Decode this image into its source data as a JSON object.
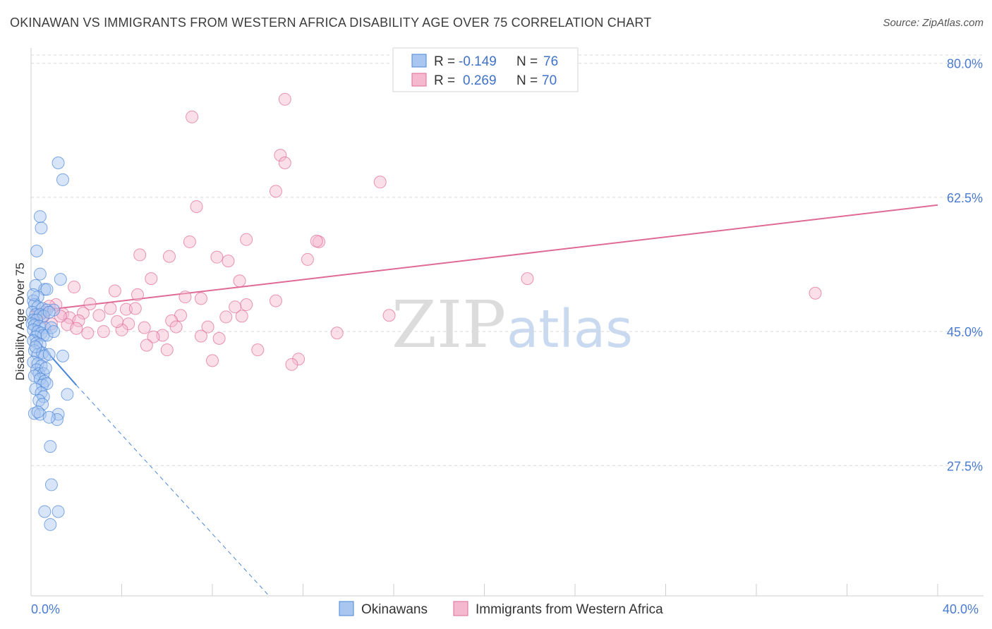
{
  "header": {
    "title": "OKINAWAN VS IMMIGRANTS FROM WESTERN AFRICA DISABILITY AGE OVER 75 CORRELATION CHART",
    "source": "Source: ZipAtlas.com"
  },
  "watermark": {
    "zip": "ZIP",
    "atlas": "atlas"
  },
  "colors": {
    "blue": "#4a86d8",
    "blue_fill": "#a9c6f0",
    "pink": "#e06a96",
    "pink_fill": "#f4b9cf",
    "axis_label": "#4a7bd0"
  },
  "chart_data": {
    "type": "scatter",
    "title": "OKINAWAN VS IMMIGRANTS FROM WESTERN AFRICA DISABILITY AGE OVER 75 CORRELATION CHART",
    "xlabel": "",
    "ylabel": "Disability Age Over 75",
    "xlim": [
      0,
      40
    ],
    "ylim": [
      10.5,
      82
    ],
    "x_tick_labels": {
      "left": "0.0%",
      "right": "40.0%"
    },
    "y_ticks": [
      {
        "value": 80.0,
        "label": "80.0%"
      },
      {
        "value": 62.5,
        "label": "62.5%"
      },
      {
        "value": 45.0,
        "label": "45.0%"
      },
      {
        "value": 27.5,
        "label": "27.5%"
      }
    ],
    "grid": true,
    "legend_position": "top-center",
    "legend": [
      {
        "r_label": "R = ",
        "r_value": "-0.149",
        "n_label": "N = ",
        "n_value": "76"
      },
      {
        "r_label": "R = ",
        "r_value": "0.269",
        "n_label": "N = ",
        "n_value": "70"
      }
    ],
    "series": [
      {
        "name": "Okinawans",
        "color": "#4a86d8",
        "points": [
          [
            1.2,
            67.0
          ],
          [
            1.4,
            64.8
          ],
          [
            0.4,
            60.0
          ],
          [
            0.45,
            58.5
          ],
          [
            0.25,
            55.5
          ],
          [
            0.4,
            52.5
          ],
          [
            1.3,
            51.8
          ],
          [
            0.2,
            51.0
          ],
          [
            0.6,
            50.5
          ],
          [
            0.7,
            50.5
          ],
          [
            0.3,
            49.5
          ],
          [
            0.1,
            49.0
          ],
          [
            0.15,
            48.5
          ],
          [
            0.3,
            48.2
          ],
          [
            0.5,
            48.0
          ],
          [
            0.7,
            47.8
          ],
          [
            1.0,
            47.8
          ],
          [
            0.05,
            47.5
          ],
          [
            0.2,
            47.2
          ],
          [
            0.4,
            47.2
          ],
          [
            0.55,
            47.0
          ],
          [
            0.8,
            47.5
          ],
          [
            0.1,
            46.5
          ],
          [
            0.25,
            46.5
          ],
          [
            0.05,
            46.0
          ],
          [
            0.15,
            45.8
          ],
          [
            0.35,
            45.7
          ],
          [
            0.6,
            45.5
          ],
          [
            0.1,
            45.2
          ],
          [
            0.3,
            45.0
          ],
          [
            0.45,
            44.8
          ],
          [
            0.55,
            44.5
          ],
          [
            0.2,
            44.3
          ],
          [
            0.7,
            44.5
          ],
          [
            0.9,
            45.5
          ],
          [
            1.0,
            45.0
          ],
          [
            0.1,
            43.8
          ],
          [
            0.25,
            43.5
          ],
          [
            0.4,
            43.3
          ],
          [
            0.15,
            42.5
          ],
          [
            0.3,
            42.0
          ],
          [
            0.5,
            42.2
          ],
          [
            0.6,
            41.8
          ],
          [
            0.8,
            42.0
          ],
          [
            1.4,
            41.8
          ],
          [
            0.1,
            41.0
          ],
          [
            0.3,
            40.8
          ],
          [
            0.45,
            40.5
          ],
          [
            0.25,
            40.0
          ],
          [
            0.35,
            39.5
          ],
          [
            0.55,
            39.5
          ],
          [
            0.15,
            39.2
          ],
          [
            0.4,
            38.8
          ],
          [
            0.6,
            38.5
          ],
          [
            0.5,
            38.0
          ],
          [
            0.7,
            38.2
          ],
          [
            0.2,
            37.5
          ],
          [
            0.45,
            37.0
          ],
          [
            0.55,
            36.5
          ],
          [
            1.6,
            36.8
          ],
          [
            0.35,
            36.0
          ],
          [
            0.5,
            35.5
          ],
          [
            0.15,
            34.3
          ],
          [
            0.4,
            34.2
          ],
          [
            1.2,
            34.2
          ],
          [
            1.15,
            33.5
          ],
          [
            0.8,
            33.8
          ],
          [
            0.85,
            30.0
          ],
          [
            0.9,
            25.0
          ],
          [
            0.6,
            21.5
          ],
          [
            1.2,
            21.5
          ],
          [
            0.85,
            19.8
          ],
          [
            0.3,
            34.5
          ],
          [
            0.2,
            43.0
          ],
          [
            0.65,
            40.2
          ],
          [
            0.1,
            49.8
          ]
        ],
        "trend": {
          "x0": 0.0,
          "y0": 44.7,
          "x1": 2.0,
          "y1": 38.0,
          "dashed_x1": 10.5,
          "dashed_y1": 10.5
        }
      },
      {
        "name": "Immigrants from Western Africa",
        "color": "#e06a96",
        "points": [
          [
            11.2,
            75.3
          ],
          [
            7.1,
            73.0
          ],
          [
            11.0,
            68.0
          ],
          [
            11.2,
            67.0
          ],
          [
            15.4,
            64.5
          ],
          [
            10.8,
            63.3
          ],
          [
            7.3,
            61.3
          ],
          [
            9.5,
            57.0
          ],
          [
            12.7,
            56.7
          ],
          [
            12.6,
            56.8
          ],
          [
            7.0,
            56.7
          ],
          [
            4.8,
            55.0
          ],
          [
            6.1,
            54.8
          ],
          [
            8.2,
            54.7
          ],
          [
            8.7,
            54.2
          ],
          [
            12.2,
            54.4
          ],
          [
            5.3,
            51.9
          ],
          [
            9.2,
            51.6
          ],
          [
            21.9,
            51.9
          ],
          [
            1.9,
            50.8
          ],
          [
            3.7,
            50.3
          ],
          [
            4.7,
            49.8
          ],
          [
            6.8,
            49.5
          ],
          [
            7.5,
            49.3
          ],
          [
            10.8,
            49.0
          ],
          [
            9.5,
            48.5
          ],
          [
            2.6,
            48.6
          ],
          [
            1.1,
            48.5
          ],
          [
            0.8,
            48.3
          ],
          [
            3.5,
            48.0
          ],
          [
            4.2,
            47.9
          ],
          [
            34.6,
            50.0
          ],
          [
            0.6,
            47.5
          ],
          [
            1.4,
            47.3
          ],
          [
            2.3,
            47.4
          ],
          [
            3.0,
            47.1
          ],
          [
            6.6,
            47.1
          ],
          [
            9.3,
            47.0
          ],
          [
            8.6,
            46.9
          ],
          [
            15.8,
            47.1
          ],
          [
            0.3,
            47.0
          ],
          [
            0.5,
            46.8
          ],
          [
            1.7,
            46.8
          ],
          [
            2.1,
            46.4
          ],
          [
            6.2,
            46.4
          ],
          [
            4.3,
            46.0
          ],
          [
            1.6,
            45.9
          ],
          [
            5.0,
            45.5
          ],
          [
            6.4,
            45.6
          ],
          [
            7.8,
            45.6
          ],
          [
            2.0,
            45.4
          ],
          [
            4.0,
            45.2
          ],
          [
            3.2,
            45.0
          ],
          [
            2.5,
            44.8
          ],
          [
            13.5,
            44.8
          ],
          [
            5.8,
            44.5
          ],
          [
            7.5,
            44.4
          ],
          [
            8.3,
            44.1
          ],
          [
            5.4,
            44.3
          ],
          [
            5.1,
            43.2
          ],
          [
            6.0,
            42.6
          ],
          [
            10.0,
            42.6
          ],
          [
            11.8,
            41.4
          ],
          [
            8.0,
            41.2
          ],
          [
            11.5,
            40.7
          ],
          [
            4.6,
            48.0
          ],
          [
            1.3,
            47.0
          ],
          [
            3.8,
            46.3
          ],
          [
            9.0,
            48.2
          ],
          [
            0.9,
            46.0
          ]
        ],
        "trend": {
          "x0": 0.0,
          "y0": 47.6,
          "x1": 40.0,
          "y1": 61.5
        }
      }
    ]
  }
}
